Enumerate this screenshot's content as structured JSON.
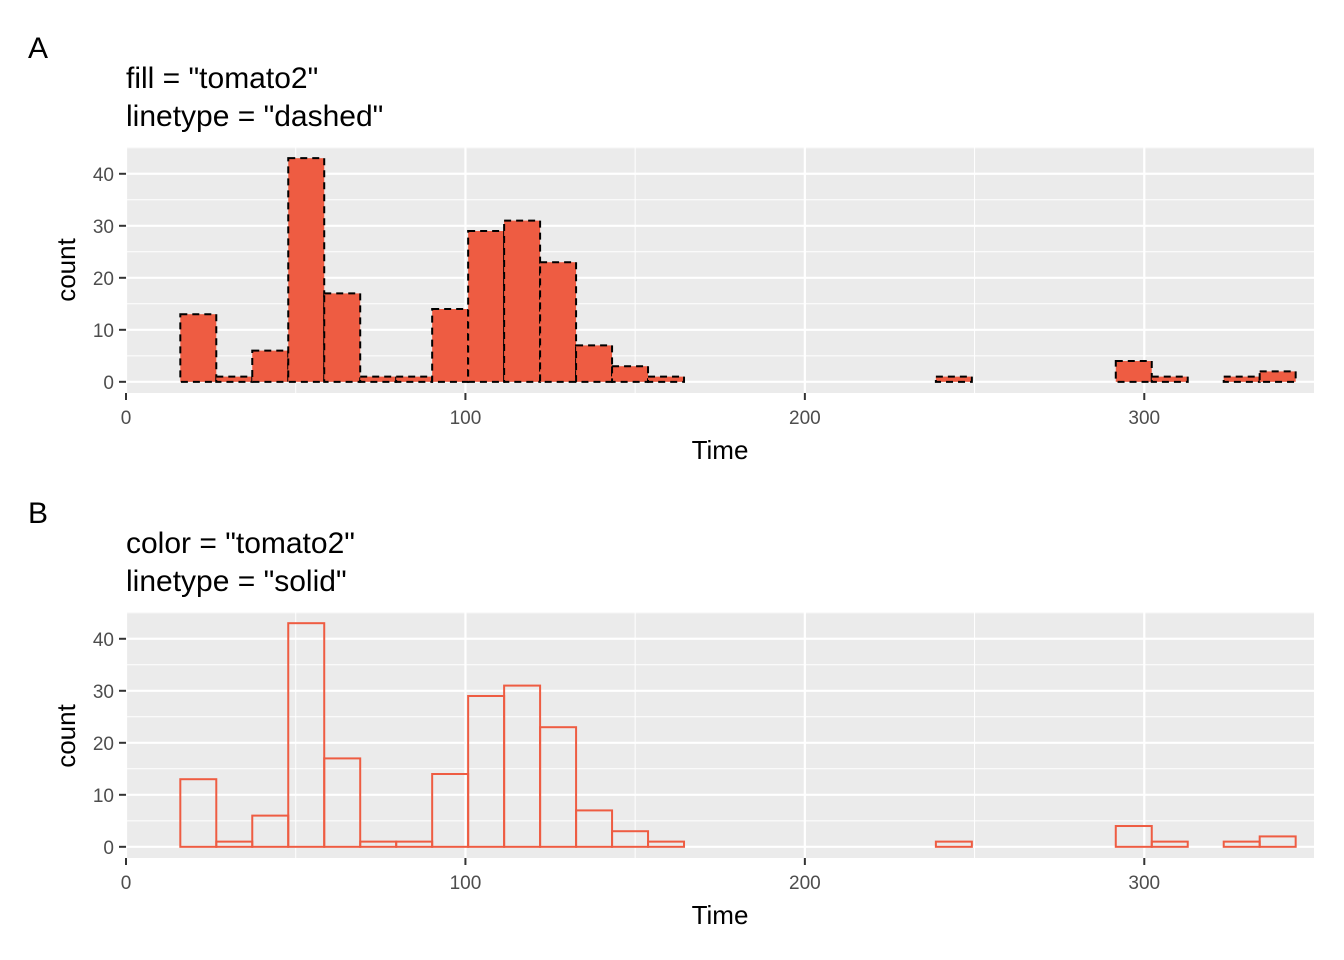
{
  "chart_data": [
    {
      "type": "bar",
      "tag": "A",
      "title_lines": [
        "fill = \"tomato2\"",
        "linetype = \"dashed\""
      ],
      "xlabel": "Time",
      "ylabel": "count",
      "xlim": [
        0,
        350
      ],
      "ylim": [
        -2.15,
        45.15
      ],
      "x_ticks": [
        "0",
        "100",
        "200",
        "300"
      ],
      "y_ticks": [
        "0",
        "10",
        "20",
        "30",
        "40"
      ],
      "bin_width": 10.6,
      "bin_start": 16,
      "values": [
        13,
        1,
        6,
        43,
        17,
        1,
        1,
        14,
        29,
        31,
        23,
        7,
        3,
        1,
        0,
        0,
        0,
        0,
        0,
        0,
        0,
        1,
        0,
        0,
        0,
        0,
        4,
        1,
        0,
        1,
        2
      ],
      "fill": "#ee5c42",
      "outline": "#000000",
      "linetype": "dashed",
      "panel_bg": "#ebebeb",
      "grid": true
    },
    {
      "type": "bar",
      "tag": "B",
      "title_lines": [
        "color = \"tomato2\"",
        "linetype = \"solid\""
      ],
      "xlabel": "Time",
      "ylabel": "count",
      "xlim": [
        0,
        350
      ],
      "ylim": [
        -2.15,
        45.15
      ],
      "x_ticks": [
        "0",
        "100",
        "200",
        "300"
      ],
      "y_ticks": [
        "0",
        "10",
        "20",
        "30",
        "40"
      ],
      "bin_width": 10.6,
      "bin_start": 16,
      "values": [
        13,
        1,
        6,
        43,
        17,
        1,
        1,
        14,
        29,
        31,
        23,
        7,
        3,
        1,
        0,
        0,
        0,
        0,
        0,
        0,
        0,
        1,
        0,
        0,
        0,
        0,
        4,
        1,
        0,
        1,
        2
      ],
      "fill": "none",
      "outline": "#ee5c42",
      "linetype": "solid",
      "panel_bg": "#ebebeb",
      "grid": true
    }
  ]
}
